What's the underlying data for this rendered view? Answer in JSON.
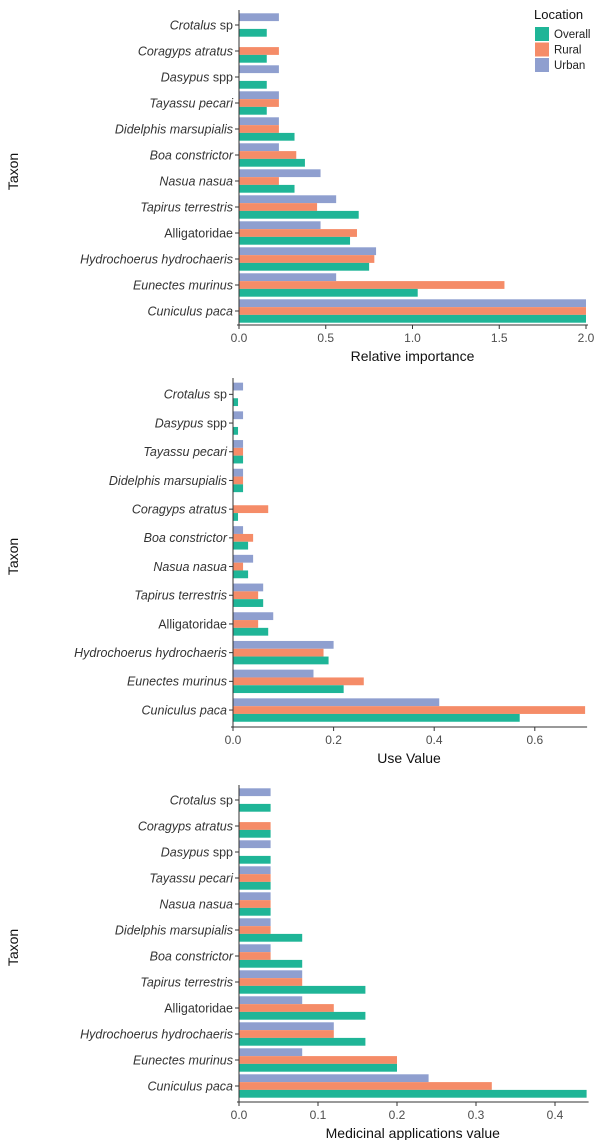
{
  "legend": {
    "title": "Location",
    "entries": [
      {
        "key": "overall",
        "label": "Overall",
        "color": "#1fb597"
      },
      {
        "key": "rural",
        "label": "Rural",
        "color": "#f58c68"
      },
      {
        "key": "urban",
        "label": "Urban",
        "color": "#8f9fcf"
      }
    ]
  },
  "chart_data": [
    {
      "type": "bar",
      "orientation": "horizontal",
      "xlabel": "Relative importance",
      "ylabel": "Taxon",
      "xlim": [
        0,
        2.0
      ],
      "xticks": [
        "0.0",
        "0.5",
        "1.0",
        "1.5",
        "2.0"
      ],
      "xtick_values": [
        0,
        0.5,
        1.0,
        1.5,
        2.0
      ],
      "grid": false,
      "legend_position": "top-right",
      "categories": [
        {
          "name": "Crotalus",
          "suffix": "sp",
          "italic": true
        },
        {
          "name": "Coragyps atratus",
          "suffix": "",
          "italic": true
        },
        {
          "name": "Dasypus",
          "suffix": "spp",
          "italic": true
        },
        {
          "name": "Tayassu pecari",
          "suffix": "",
          "italic": true
        },
        {
          "name": "Didelphis marsupialis",
          "suffix": "",
          "italic": true
        },
        {
          "name": "Boa constrictor",
          "suffix": "",
          "italic": true
        },
        {
          "name": "Nasua nasua",
          "suffix": "",
          "italic": true
        },
        {
          "name": "Tapirus terrestris",
          "suffix": "",
          "italic": true
        },
        {
          "name": "Alligatoridae",
          "suffix": "",
          "italic": false
        },
        {
          "name": "Hydrochoerus hydrochaeris",
          "suffix": "",
          "italic": true
        },
        {
          "name": "Eunectes murinus",
          "suffix": "",
          "italic": true
        },
        {
          "name": "Cuniculus paca",
          "suffix": "",
          "italic": true
        }
      ],
      "series": [
        {
          "name": "Urban",
          "values": [
            0.23,
            null,
            0.23,
            0.23,
            0.23,
            0.23,
            0.47,
            0.56,
            0.47,
            0.79,
            0.56,
            2.0
          ]
        },
        {
          "name": "Rural",
          "values": [
            null,
            0.23,
            null,
            0.23,
            0.23,
            0.33,
            0.23,
            0.45,
            0.68,
            0.78,
            1.53,
            2.0
          ]
        },
        {
          "name": "Overall",
          "values": [
            0.16,
            0.16,
            0.16,
            0.16,
            0.32,
            0.38,
            0.32,
            0.69,
            0.64,
            0.75,
            1.03,
            2.0
          ]
        }
      ]
    },
    {
      "type": "bar",
      "orientation": "horizontal",
      "xlabel": "Use Value",
      "ylabel": "Taxon",
      "xlim": [
        0,
        0.7
      ],
      "xticks": [
        "0.0",
        "0.2",
        "0.4",
        "0.6"
      ],
      "xtick_values": [
        0,
        0.2,
        0.4,
        0.6
      ],
      "grid": false,
      "categories": [
        {
          "name": "Crotalus",
          "suffix": "sp",
          "italic": true
        },
        {
          "name": "Dasypus",
          "suffix": "spp",
          "italic": true
        },
        {
          "name": "Tayassu pecari",
          "suffix": "",
          "italic": true
        },
        {
          "name": "Didelphis marsupialis",
          "suffix": "",
          "italic": true
        },
        {
          "name": "Coragyps atratus",
          "suffix": "",
          "italic": true
        },
        {
          "name": "Boa constrictor",
          "suffix": "",
          "italic": true
        },
        {
          "name": "Nasua nasua",
          "suffix": "",
          "italic": true
        },
        {
          "name": "Tapirus terrestris",
          "suffix": "",
          "italic": true
        },
        {
          "name": "Alligatoridae",
          "suffix": "",
          "italic": false
        },
        {
          "name": "Hydrochoerus hydrochaeris",
          "suffix": "",
          "italic": true
        },
        {
          "name": "Eunectes murinus",
          "suffix": "",
          "italic": true
        },
        {
          "name": "Cuniculus paca",
          "suffix": "",
          "italic": true
        }
      ],
      "series": [
        {
          "name": "Urban",
          "values": [
            0.02,
            0.02,
            0.02,
            0.02,
            null,
            0.02,
            0.04,
            0.06,
            0.08,
            0.2,
            0.16,
            0.41
          ]
        },
        {
          "name": "Rural",
          "values": [
            null,
            null,
            0.02,
            0.02,
            0.07,
            0.04,
            0.02,
            0.05,
            0.05,
            0.18,
            0.26,
            0.7
          ]
        },
        {
          "name": "Overall",
          "values": [
            0.01,
            0.01,
            0.02,
            0.02,
            0.01,
            0.03,
            0.03,
            0.06,
            0.07,
            0.19,
            0.22,
            0.57
          ]
        }
      ]
    },
    {
      "type": "bar",
      "orientation": "horizontal",
      "xlabel": "Medicinal applications value",
      "ylabel": "Taxon",
      "xlim": [
        0,
        0.44
      ],
      "xticks": [
        "0.0",
        "0.1",
        "0.2",
        "0.3",
        "0.4"
      ],
      "xtick_values": [
        0,
        0.1,
        0.2,
        0.3,
        0.4
      ],
      "grid": false,
      "categories": [
        {
          "name": "Crotalus",
          "suffix": "sp",
          "italic": true
        },
        {
          "name": "Coragyps atratus",
          "suffix": "",
          "italic": true
        },
        {
          "name": "Dasypus",
          "suffix": "spp",
          "italic": true
        },
        {
          "name": "Tayassu pecari",
          "suffix": "",
          "italic": true
        },
        {
          "name": "Nasua nasua",
          "suffix": "",
          "italic": true
        },
        {
          "name": "Didelphis marsupialis",
          "suffix": "",
          "italic": true
        },
        {
          "name": "Boa constrictor",
          "suffix": "",
          "italic": true
        },
        {
          "name": "Tapirus terrestris",
          "suffix": "",
          "italic": true
        },
        {
          "name": "Alligatoridae",
          "suffix": "",
          "italic": false
        },
        {
          "name": "Hydrochoerus hydrochaeris",
          "suffix": "",
          "italic": true
        },
        {
          "name": "Eunectes murinus",
          "suffix": "",
          "italic": true
        },
        {
          "name": "Cuniculus paca",
          "suffix": "",
          "italic": true
        }
      ],
      "series": [
        {
          "name": "Urban",
          "values": [
            0.04,
            null,
            0.04,
            0.04,
            0.04,
            0.04,
            0.04,
            0.08,
            0.08,
            0.12,
            0.08,
            0.24
          ]
        },
        {
          "name": "Rural",
          "values": [
            null,
            0.04,
            null,
            0.04,
            0.04,
            0.04,
            0.04,
            0.08,
            0.12,
            0.12,
            0.2,
            0.32
          ]
        },
        {
          "name": "Overall",
          "values": [
            0.04,
            0.04,
            0.04,
            0.04,
            0.04,
            0.08,
            0.08,
            0.16,
            0.16,
            0.16,
            0.2,
            0.44
          ]
        }
      ]
    }
  ]
}
